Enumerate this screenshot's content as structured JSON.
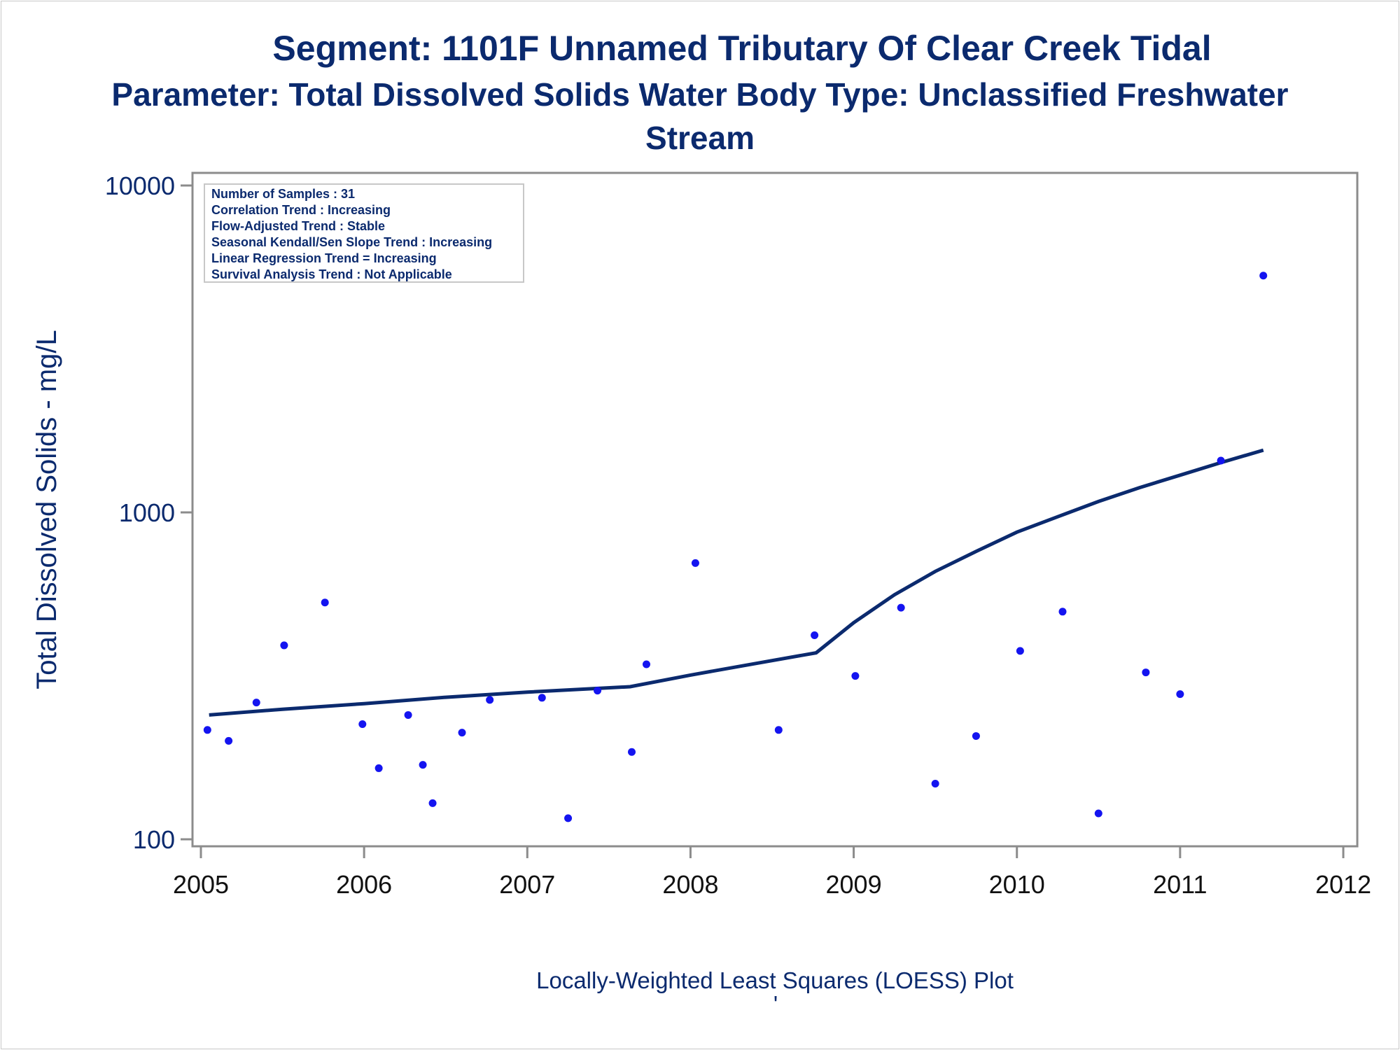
{
  "chart_data": {
    "type": "scatter",
    "title": "Segment: 1101F  Unnamed Tributary Of Clear Creek Tidal",
    "subtitle": "Parameter: Total Dissolved Solids   Water Body Type: Unclassified Freshwater Stream",
    "ylabel": "Total Dissolved Solids - mg/L",
    "xlabel": "",
    "footer": "Locally-Weighted Least Squares (LOESS) Plot",
    "footer_mark": "'",
    "yscale": "log",
    "ylim": [
      100,
      10000
    ],
    "xlim": [
      2005,
      2012
    ],
    "x_ticks": [
      "2005",
      "2006",
      "2007",
      "2008",
      "2009",
      "2010",
      "2011",
      "2012"
    ],
    "y_ticks": [
      "100",
      "1000",
      "10000"
    ],
    "grid": false,
    "inset_lines": [
      "Number of Samples : 31",
      "Correlation Trend : Increasing",
      "Flow-Adjusted Trend : Stable",
      "Seasonal Kendall/Sen Slope Trend : Increasing",
      "Linear Regression Trend = Increasing",
      "Survival Analysis Trend : Not Applicable"
    ],
    "points": [
      {
        "x": 2005.04,
        "y": 216
      },
      {
        "x": 2005.17,
        "y": 200
      },
      {
        "x": 2005.34,
        "y": 262
      },
      {
        "x": 2005.51,
        "y": 392
      },
      {
        "x": 2005.76,
        "y": 530
      },
      {
        "x": 2005.99,
        "y": 225
      },
      {
        "x": 2006.09,
        "y": 165
      },
      {
        "x": 2006.27,
        "y": 240
      },
      {
        "x": 2006.36,
        "y": 169
      },
      {
        "x": 2006.42,
        "y": 129
      },
      {
        "x": 2006.6,
        "y": 212
      },
      {
        "x": 2006.77,
        "y": 267
      },
      {
        "x": 2007.09,
        "y": 271
      },
      {
        "x": 2007.25,
        "y": 116
      },
      {
        "x": 2007.43,
        "y": 285
      },
      {
        "x": 2007.64,
        "y": 185
      },
      {
        "x": 2007.73,
        "y": 343
      },
      {
        "x": 2008.03,
        "y": 700
      },
      {
        "x": 2008.54,
        "y": 216
      },
      {
        "x": 2008.76,
        "y": 421
      },
      {
        "x": 2009.01,
        "y": 316
      },
      {
        "x": 2009.29,
        "y": 511
      },
      {
        "x": 2009.5,
        "y": 148
      },
      {
        "x": 2009.75,
        "y": 207
      },
      {
        "x": 2010.02,
        "y": 377
      },
      {
        "x": 2010.28,
        "y": 497
      },
      {
        "x": 2010.5,
        "y": 120
      },
      {
        "x": 2010.79,
        "y": 324
      },
      {
        "x": 2011.0,
        "y": 278
      },
      {
        "x": 2011.25,
        "y": 1440
      },
      {
        "x": 2011.51,
        "y": 5300
      }
    ],
    "loess": [
      {
        "x": 2005.05,
        "y": 240
      },
      {
        "x": 2005.5,
        "y": 250
      },
      {
        "x": 2006.0,
        "y": 260
      },
      {
        "x": 2006.5,
        "y": 272
      },
      {
        "x": 2007.0,
        "y": 282
      },
      {
        "x": 2007.63,
        "y": 293
      },
      {
        "x": 2008.0,
        "y": 318
      },
      {
        "x": 2008.4,
        "y": 345
      },
      {
        "x": 2008.77,
        "y": 372
      },
      {
        "x": 2009.0,
        "y": 460
      },
      {
        "x": 2009.25,
        "y": 560
      },
      {
        "x": 2009.5,
        "y": 660
      },
      {
        "x": 2009.75,
        "y": 760
      },
      {
        "x": 2010.0,
        "y": 870
      },
      {
        "x": 2010.25,
        "y": 970
      },
      {
        "x": 2010.5,
        "y": 1080
      },
      {
        "x": 2010.75,
        "y": 1190
      },
      {
        "x": 2011.0,
        "y": 1300
      },
      {
        "x": 2011.25,
        "y": 1420
      },
      {
        "x": 2011.51,
        "y": 1550
      }
    ],
    "colors": {
      "points": "#1414f0",
      "loess": "#0b2a6e",
      "text": "#0b2a6e",
      "axis": "#8c8c8c"
    }
  }
}
